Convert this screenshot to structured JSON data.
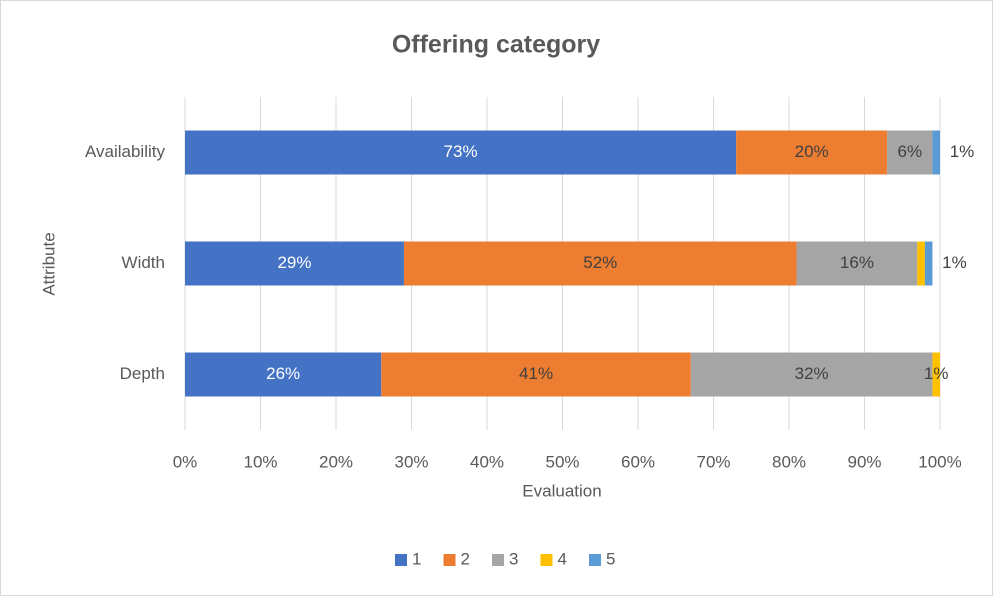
{
  "chart_data": {
    "type": "bar",
    "orientation": "horizontal",
    "stacked": true,
    "title": "Offering category",
    "x_label": "Evaluation",
    "y_label": "Attribute",
    "categories": [
      "Availability",
      "Width",
      "Depth"
    ],
    "series": [
      {
        "name": "1",
        "color": "#4472c4",
        "values": [
          73,
          29,
          26
        ],
        "value_labels": [
          "73%",
          "29%",
          "26%"
        ]
      },
      {
        "name": "2",
        "color": "#ed7d31",
        "values": [
          20,
          52,
          41
        ],
        "value_labels": [
          "20%",
          "52%",
          "41%"
        ]
      },
      {
        "name": "3",
        "color": "#a5a5a5",
        "values": [
          6,
          16,
          32
        ],
        "value_labels": [
          "6%",
          "16%",
          "32%"
        ]
      },
      {
        "name": "4",
        "color": "#ffc000",
        "values": [
          0,
          1,
          1
        ],
        "value_labels": [
          null,
          null,
          "1%"
        ]
      },
      {
        "name": "5",
        "color": "#5b9bd5",
        "values": [
          1,
          1,
          0
        ],
        "value_labels": [
          "1%",
          "1%",
          null
        ]
      }
    ],
    "xlim": [
      0,
      100
    ],
    "xticks": [
      {
        "value": 0,
        "label": "0%"
      },
      {
        "value": 10,
        "label": "10%"
      },
      {
        "value": 20,
        "label": "20%"
      },
      {
        "value": 30,
        "label": "30%"
      },
      {
        "value": 40,
        "label": "40%"
      },
      {
        "value": 50,
        "label": "50%"
      },
      {
        "value": 60,
        "label": "60%"
      },
      {
        "value": 70,
        "label": "70%"
      },
      {
        "value": 80,
        "label": "80%"
      },
      {
        "value": 90,
        "label": "90%"
      },
      {
        "value": 100,
        "label": "100%"
      }
    ],
    "grid": true,
    "legend": "bottom"
  }
}
